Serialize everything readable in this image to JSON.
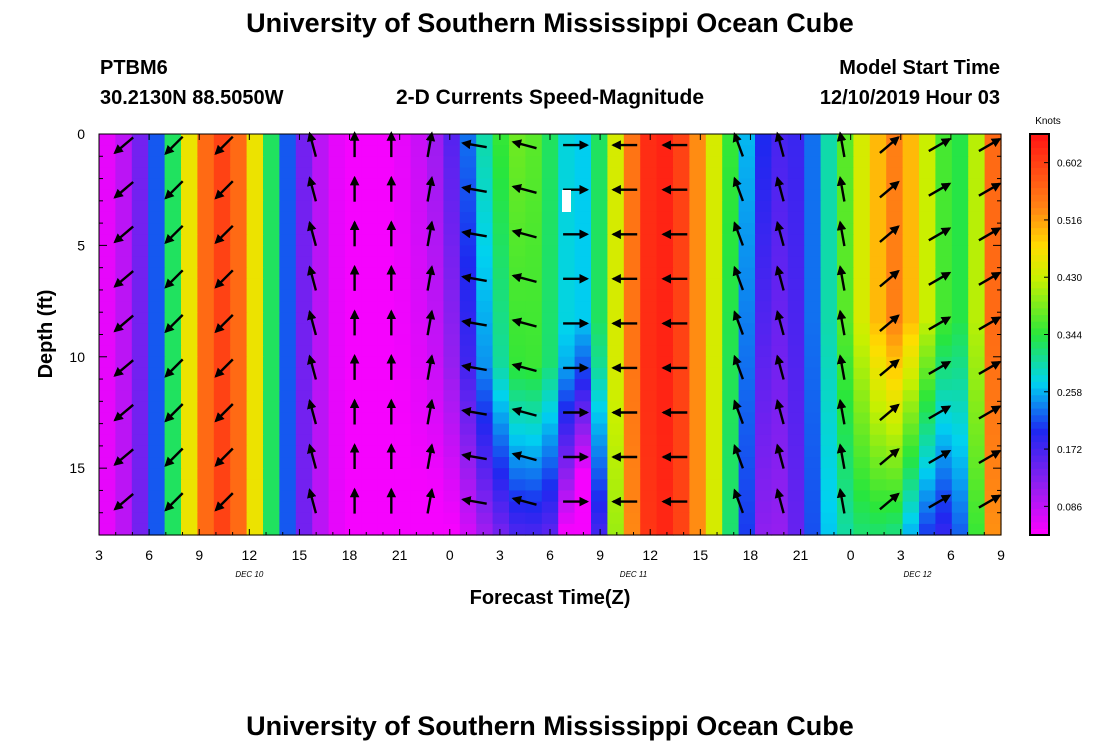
{
  "titles": {
    "top": "University of Southern Mississippi Ocean Cube",
    "bottom": "University of Southern Mississippi Ocean Cube"
  },
  "header": {
    "station": "PTBM6",
    "coords": "30.2130N 88.5050W",
    "product": "2-D Currents Speed-Magnitude",
    "model_label": "Model Start Time",
    "model_time": "12/10/2019 Hour 03"
  },
  "chart_data": {
    "type": "heatmap",
    "title": "2-D Currents Speed-Magnitude",
    "xlabel": "Forecast Time(Z)",
    "ylabel": "Depth (ft)",
    "colorbar_label": "Knots",
    "x_hours_range": [
      0,
      54
    ],
    "ylim": [
      0,
      18
    ],
    "y_inverted": true,
    "x_ticks": [
      {
        "h": 0,
        "label": "3"
      },
      {
        "h": 3,
        "label": "6"
      },
      {
        "h": 6,
        "label": "9"
      },
      {
        "h": 9,
        "label": "12"
      },
      {
        "h": 12,
        "label": "15"
      },
      {
        "h": 15,
        "label": "18"
      },
      {
        "h": 18,
        "label": "21"
      },
      {
        "h": 21,
        "label": "0"
      },
      {
        "h": 24,
        "label": "3"
      },
      {
        "h": 27,
        "label": "6"
      },
      {
        "h": 30,
        "label": "9"
      },
      {
        "h": 33,
        "label": "12"
      },
      {
        "h": 36,
        "label": "15"
      },
      {
        "h": 39,
        "label": "18"
      },
      {
        "h": 42,
        "label": "21"
      },
      {
        "h": 45,
        "label": "0"
      },
      {
        "h": 48,
        "label": "3"
      },
      {
        "h": 51,
        "label": "6"
      },
      {
        "h": 54,
        "label": "9"
      }
    ],
    "date_labels": [
      {
        "h": 9,
        "label": "DEC 10"
      },
      {
        "h": 32,
        "label": "DEC 11"
      },
      {
        "h": 49,
        "label": "DEC 12"
      }
    ],
    "y_ticks": [
      {
        "v": 0,
        "label": "0"
      },
      {
        "v": 5,
        "label": "5"
      },
      {
        "v": 10,
        "label": "10"
      },
      {
        "v": 15,
        "label": "15"
      }
    ],
    "colorbar": {
      "min": 0.043,
      "max": 0.645,
      "ticks": [
        "0.086",
        "0.172",
        "0.258",
        "0.344",
        "0.430",
        "0.516",
        "0.602"
      ],
      "tick_values": [
        0.086,
        0.172,
        0.258,
        0.344,
        0.43,
        0.516,
        0.602
      ]
    },
    "depths_ft": [
      0,
      0.5,
      1,
      1.5,
      2,
      2.5,
      3,
      3.5,
      4,
      4.5,
      5,
      5.5,
      6,
      6.5,
      7,
      7.5,
      8,
      8.5,
      9,
      9.5,
      10,
      10.5,
      11,
      11.5,
      12,
      12.5,
      13,
      13.5,
      14,
      14.5,
      15,
      15.5,
      16,
      16.5,
      17,
      17.5
    ],
    "surface_speed_knots": [
      0.06,
      0.09,
      0.14,
      0.22,
      0.33,
      0.46,
      0.56,
      0.6,
      0.56,
      0.46,
      0.33,
      0.22,
      0.14,
      0.09,
      0.06,
      0.05,
      0.05,
      0.05,
      0.06,
      0.08,
      0.11,
      0.16,
      0.23,
      0.3,
      0.35,
      0.38,
      0.37,
      0.33,
      0.28,
      0.27,
      0.33,
      0.44,
      0.55,
      0.62,
      0.63,
      0.6,
      0.53,
      0.44,
      0.35,
      0.26,
      0.2,
      0.17,
      0.18,
      0.23,
      0.3,
      0.37,
      0.44,
      0.5,
      0.54,
      0.5,
      0.43,
      0.36,
      0.34,
      0.42,
      0.56,
      0.63,
      0.63
    ],
    "arrow_x_hours": [
      1.5,
      4.5,
      7.5,
      12.8,
      15.3,
      17.5,
      19.8,
      22.5,
      25.5,
      28.5,
      31.5,
      34.5,
      38.3,
      40.8,
      44.5,
      47.3,
      50.3,
      53.3
    ],
    "arrow_depths_ft": [
      0.5,
      2.5,
      4.5,
      6.5,
      8.5,
      10.5,
      12.5,
      14.5,
      16.5
    ],
    "arrow_directions_deg_cw_from_north": [
      230,
      225,
      225,
      -15,
      0,
      0,
      10,
      -80,
      -75,
      90,
      -90,
      -90,
      -20,
      -15,
      -10,
      50,
      60,
      60
    ]
  }
}
